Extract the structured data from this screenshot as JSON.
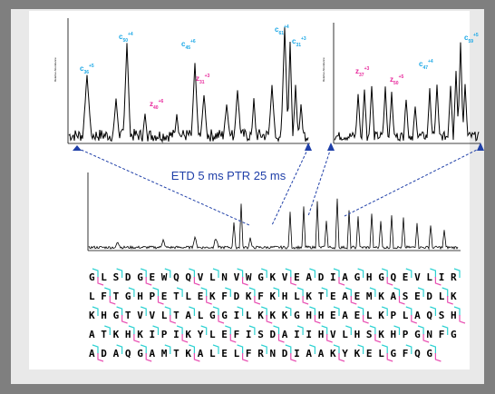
{
  "figure": {
    "caption": "ETD 5 ms PTR 25 ms",
    "colors": {
      "c_ion": "#19a7e6",
      "z_ion": "#e8279b",
      "trace": "#000000",
      "arrow": "#1f3fa8",
      "cleavage_c": "#2bd1d1",
      "cleavage_z": "#e84fb2"
    }
  },
  "panel_left": {
    "labels": [
      {
        "ion": "c",
        "num": "36",
        "charge": "+5",
        "kind": "c"
      },
      {
        "ion": "c",
        "num": "50",
        "charge": "+4",
        "kind": "c"
      },
      {
        "ion": "c",
        "num": "45",
        "charge": "+6",
        "kind": "c"
      },
      {
        "ion": "z",
        "num": "40",
        "charge": "+6",
        "kind": "z"
      },
      {
        "ion": "z",
        "num": "31",
        "charge": "+3",
        "kind": "z"
      },
      {
        "ion": "c",
        "num": "61",
        "charge": "+4",
        "kind": "c"
      },
      {
        "ion": "c",
        "num": "31",
        "charge": "+3",
        "kind": "c"
      }
    ]
  },
  "panel_right": {
    "labels": [
      {
        "ion": "z",
        "num": "37",
        "charge": "+3",
        "kind": "z"
      },
      {
        "ion": "z",
        "num": "50",
        "charge": "+5",
        "kind": "z"
      },
      {
        "ion": "c",
        "num": "47",
        "charge": "+4",
        "kind": "c"
      },
      {
        "ion": "c",
        "num": "59",
        "charge": "+5",
        "kind": "c"
      }
    ]
  },
  "sequence": {
    "rows": [
      "GLSDGEWQQVLNVWGKVEADIAGHGQEVLIR",
      "LFTGHPETLEKFDKFKHLKTEAEMKASEDLK",
      "KHGTVVLTALGGILKKKGHHEAELKPLAQSH",
      "ATKHKIPIKYLEFISDAIIHVLHSKHPGNFG",
      "ADAQGAMTKALELFRNDIAAKYKELGFQG"
    ]
  }
}
